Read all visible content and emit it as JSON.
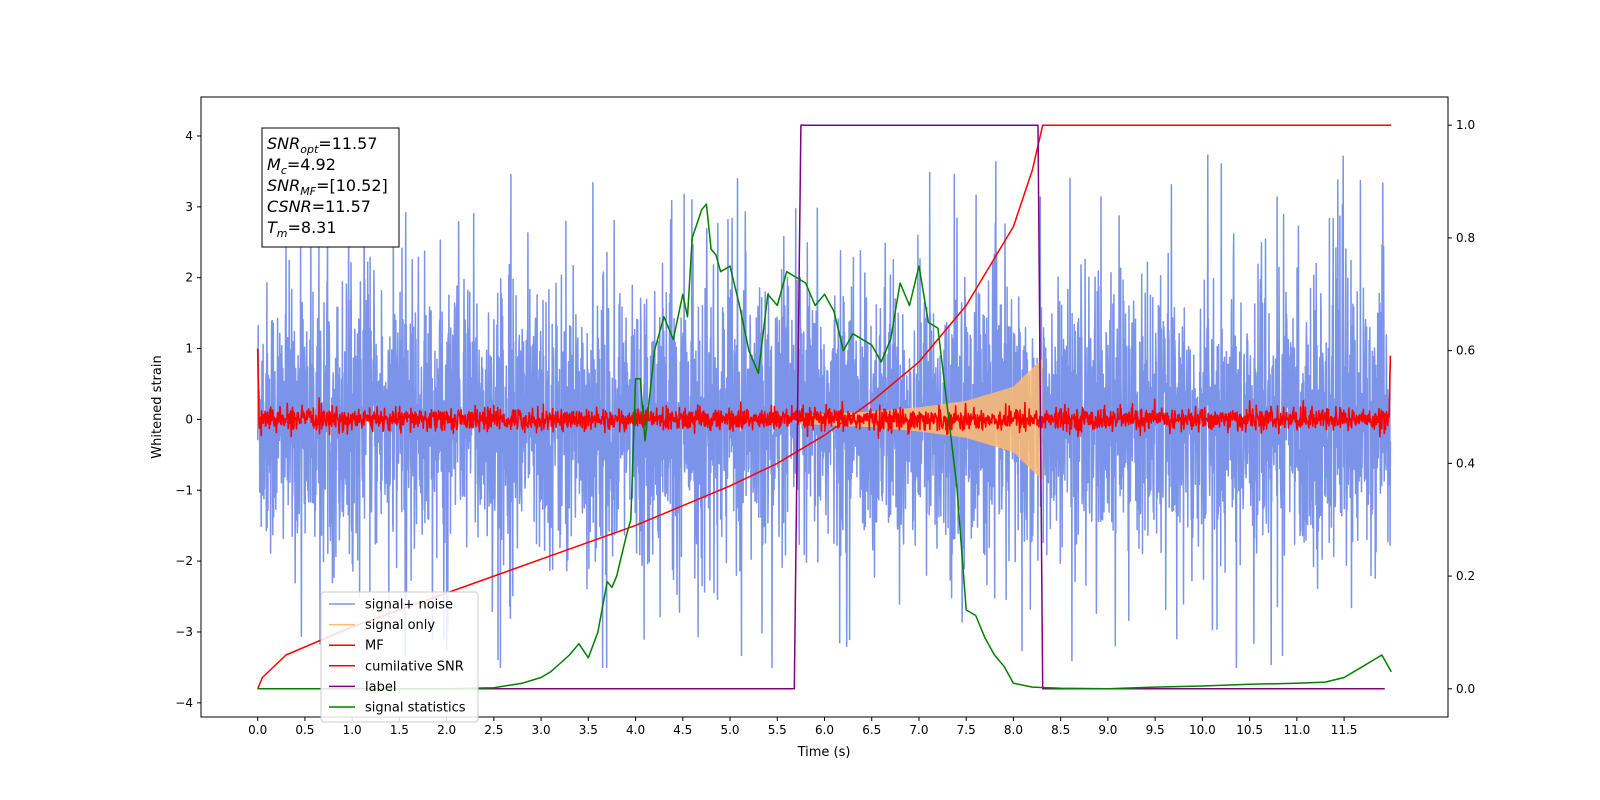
{
  "chart_data": {
    "type": "line",
    "xlabel": "Time (s)",
    "ylabel": "Whitened strain",
    "xlim": [
      -0.6,
      12.6
    ],
    "ylim": [
      -4.2,
      4.55
    ],
    "y2lim": [
      -0.05,
      1.05
    ],
    "x_ticks": [
      "0.0",
      "0.5",
      "1.0",
      "1.5",
      "2.0",
      "2.5",
      "3.0",
      "3.5",
      "4.0",
      "4.5",
      "5.0",
      "5.5",
      "6.0",
      "6.5",
      "7.0",
      "7.5",
      "8.0",
      "8.5",
      "9.0",
      "9.5",
      "10.0",
      "10.5",
      "11.0",
      "11.5"
    ],
    "y_ticks": [
      "4",
      "3",
      "2",
      "1",
      "0",
      "−1",
      "−2",
      "−3",
      "−4"
    ],
    "y2_ticks": [
      "1.0",
      "0.8",
      "0.6",
      "0.4",
      "0.2",
      "0.0"
    ],
    "legend_position": "lower-left",
    "info_box": {
      "position": "top-left",
      "lines": [
        {
          "base": "SNR",
          "sub": "opt",
          "value": "=11.57"
        },
        {
          "base": "M",
          "sub": "c",
          "value": "=4.92"
        },
        {
          "base": "SNR",
          "sub": "MF",
          "value": "=[10.52]"
        },
        {
          "base": "CSNR",
          "sub": "",
          "value": "=11.57"
        },
        {
          "base": "T",
          "sub": "m",
          "value": "=8.31"
        }
      ]
    },
    "series": [
      {
        "name": "signal+ noise",
        "color": "#7b93e8",
        "axis": "left",
        "kind": "noise",
        "x_range": [
          0.0,
          11.99
        ],
        "amplitude_sd": 0.95,
        "peak_range": [
          -3.5,
          4.15
        ]
      },
      {
        "name": "signal only",
        "color": "#ffbb70",
        "axis": "left",
        "kind": "chirp",
        "x_range": [
          5.7,
          8.3
        ],
        "envelope": [
          [
            5.7,
            0.05
          ],
          [
            6.5,
            0.1
          ],
          [
            7.0,
            0.16
          ],
          [
            7.5,
            0.25
          ],
          [
            8.0,
            0.45
          ],
          [
            8.31,
            0.85
          ]
        ]
      },
      {
        "name": "MF",
        "color": "#ff0000",
        "axis": "left",
        "kind": "noise",
        "x_range": [
          0.0,
          11.99
        ],
        "amplitude_sd": 0.08,
        "edge_values": [
          1.0,
          0.9
        ]
      },
      {
        "name": "cumilative SNR",
        "color": "#ff0000",
        "axis": "right",
        "x": [
          0.0,
          0.05,
          0.3,
          1.0,
          2.0,
          3.0,
          4.0,
          5.0,
          5.5,
          6.0,
          6.5,
          7.0,
          7.5,
          8.0,
          8.2,
          8.31,
          12.0
        ],
        "values": [
          0.0,
          0.02,
          0.06,
          0.11,
          0.17,
          0.23,
          0.29,
          0.36,
          0.4,
          0.45,
          0.51,
          0.58,
          0.68,
          0.82,
          0.92,
          1.0,
          1.0
        ]
      },
      {
        "name": "label",
        "color": "#800080",
        "axis": "right",
        "x": [
          0.0,
          5.68,
          5.75,
          8.26,
          8.31,
          11.93
        ],
        "values": [
          0.0,
          0.0,
          1.0,
          1.0,
          0.0,
          0.0
        ]
      },
      {
        "name": "signal statistics",
        "color": "#008000",
        "axis": "right",
        "x": [
          0.0,
          0.5,
          1.0,
          1.5,
          2.0,
          2.5,
          2.8,
          3.0,
          3.1,
          3.2,
          3.3,
          3.4,
          3.5,
          3.6,
          3.7,
          3.75,
          3.8,
          3.9,
          3.95,
          4.0,
          4.05,
          4.1,
          4.15,
          4.2,
          4.3,
          4.4,
          4.5,
          4.55,
          4.6,
          4.7,
          4.75,
          4.8,
          4.85,
          4.9,
          5.0,
          5.1,
          5.2,
          5.3,
          5.4,
          5.5,
          5.6,
          5.7,
          5.8,
          5.9,
          6.0,
          6.1,
          6.2,
          6.3,
          6.4,
          6.5,
          6.6,
          6.7,
          6.8,
          6.9,
          7.0,
          7.1,
          7.2,
          7.3,
          7.4,
          7.5,
          7.6,
          7.7,
          7.8,
          7.9,
          8.0,
          8.2,
          8.5,
          9.0,
          9.5,
          10.0,
          10.5,
          11.0,
          11.3,
          11.5,
          11.7,
          11.8,
          11.9,
          12.0
        ],
        "values": [
          0.0,
          0.0,
          0.0,
          0.0,
          0.0,
          0.002,
          0.01,
          0.02,
          0.03,
          0.045,
          0.06,
          0.08,
          0.055,
          0.1,
          0.19,
          0.18,
          0.2,
          0.27,
          0.3,
          0.55,
          0.55,
          0.44,
          0.52,
          0.6,
          0.66,
          0.62,
          0.7,
          0.66,
          0.8,
          0.85,
          0.86,
          0.78,
          0.77,
          0.74,
          0.75,
          0.68,
          0.6,
          0.56,
          0.7,
          0.68,
          0.74,
          0.73,
          0.72,
          0.68,
          0.7,
          0.67,
          0.6,
          0.63,
          0.62,
          0.61,
          0.58,
          0.62,
          0.72,
          0.68,
          0.75,
          0.65,
          0.64,
          0.5,
          0.36,
          0.14,
          0.13,
          0.09,
          0.06,
          0.04,
          0.01,
          0.003,
          0.001,
          0.0,
          0.003,
          0.005,
          0.008,
          0.01,
          0.012,
          0.02,
          0.04,
          0.05,
          0.06,
          0.03
        ]
      }
    ]
  }
}
